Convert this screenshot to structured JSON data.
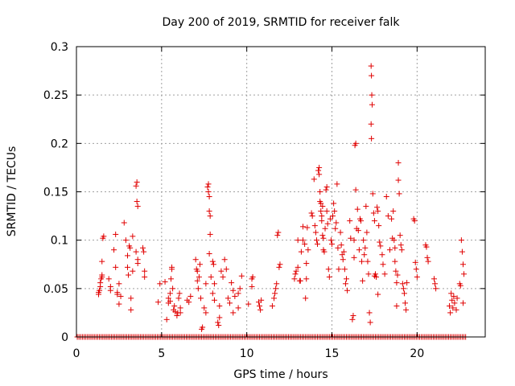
{
  "chart_data": {
    "type": "scatter",
    "title": "Day 200 of 2019, SRMTID for receiver falk",
    "xlabel": "GPS time / hours",
    "ylabel": "SRMTID / TECUs",
    "xlim": [
      0,
      24
    ],
    "ylim": [
      0,
      0.3
    ],
    "xticks": [
      0,
      5,
      10,
      15,
      20
    ],
    "xtick_labels": [
      "0",
      "5",
      "10",
      "15",
      "20"
    ],
    "yticks": [
      0,
      0.05,
      0.1,
      0.15,
      0.2,
      0.25,
      0.3
    ],
    "ytick_labels": [
      "0",
      "0.05",
      "0.1",
      "0.15",
      "0.2",
      "0.25",
      "0.3"
    ],
    "grid": true,
    "marker": "+",
    "color": "#e00000",
    "zero_band": {
      "x_start": 0.05,
      "x_end": 22.9,
      "step": 0.1,
      "y": 0
    },
    "points": [
      [
        1.3,
        0.044
      ],
      [
        1.3,
        0.046
      ],
      [
        1.35,
        0.048
      ],
      [
        1.4,
        0.052
      ],
      [
        1.4,
        0.056
      ],
      [
        1.45,
        0.06
      ],
      [
        1.5,
        0.062
      ],
      [
        1.5,
        0.064
      ],
      [
        1.5,
        0.078
      ],
      [
        1.55,
        0.102
      ],
      [
        1.6,
        0.104
      ],
      [
        1.9,
        0.06
      ],
      [
        2.0,
        0.052
      ],
      [
        2.0,
        0.048
      ],
      [
        2.2,
        0.09
      ],
      [
        2.3,
        0.106
      ],
      [
        2.3,
        0.072
      ],
      [
        2.4,
        0.044
      ],
      [
        2.4,
        0.046
      ],
      [
        2.5,
        0.055
      ],
      [
        2.5,
        0.034
      ],
      [
        2.6,
        0.042
      ],
      [
        2.8,
        0.118
      ],
      [
        2.9,
        0.1
      ],
      [
        3.0,
        0.084
      ],
      [
        3.0,
        0.072
      ],
      [
        3.05,
        0.064
      ],
      [
        3.1,
        0.094
      ],
      [
        3.15,
        0.092
      ],
      [
        3.2,
        0.04
      ],
      [
        3.2,
        0.028
      ],
      [
        3.3,
        0.068
      ],
      [
        3.3,
        0.104
      ],
      [
        3.5,
        0.156
      ],
      [
        3.55,
        0.16
      ],
      [
        3.55,
        0.14
      ],
      [
        3.6,
        0.135
      ],
      [
        3.5,
        0.088
      ],
      [
        3.6,
        0.076
      ],
      [
        3.6,
        0.08
      ],
      [
        3.9,
        0.092
      ],
      [
        3.95,
        0.088
      ],
      [
        4.0,
        0.068
      ],
      [
        4.0,
        0.062
      ],
      [
        4.8,
        0.036
      ],
      [
        4.9,
        0.055
      ],
      [
        5.2,
        0.057
      ],
      [
        5.3,
        0.018
      ],
      [
        5.4,
        0.04
      ],
      [
        5.4,
        0.035
      ],
      [
        5.5,
        0.037
      ],
      [
        5.5,
        0.045
      ],
      [
        5.55,
        0.06
      ],
      [
        5.6,
        0.07
      ],
      [
        5.6,
        0.072
      ],
      [
        5.65,
        0.05
      ],
      [
        5.7,
        0.028
      ],
      [
        5.75,
        0.032
      ],
      [
        5.8,
        0.026
      ],
      [
        5.9,
        0.022
      ],
      [
        5.95,
        0.025
      ],
      [
        6.0,
        0.04
      ],
      [
        6.05,
        0.045
      ],
      [
        6.1,
        0.03
      ],
      [
        6.1,
        0.025
      ],
      [
        6.5,
        0.038
      ],
      [
        6.6,
        0.036
      ],
      [
        6.7,
        0.042
      ],
      [
        7.0,
        0.08
      ],
      [
        7.05,
        0.07
      ],
      [
        7.1,
        0.068
      ],
      [
        7.1,
        0.058
      ],
      [
        7.15,
        0.05
      ],
      [
        7.2,
        0.062
      ],
      [
        7.25,
        0.075
      ],
      [
        7.3,
        0.04
      ],
      [
        7.35,
        0.008
      ],
      [
        7.4,
        0.01
      ],
      [
        7.5,
        0.03
      ],
      [
        7.6,
        0.025
      ],
      [
        7.6,
        0.055
      ],
      [
        7.7,
        0.155
      ],
      [
        7.75,
        0.158
      ],
      [
        7.75,
        0.15
      ],
      [
        7.8,
        0.145
      ],
      [
        7.8,
        0.13
      ],
      [
        7.85,
        0.125
      ],
      [
        7.85,
        0.106
      ],
      [
        7.8,
        0.086
      ],
      [
        7.9,
        0.062
      ],
      [
        8.0,
        0.078
      ],
      [
        8.0,
        0.045
      ],
      [
        8.05,
        0.075
      ],
      [
        8.1,
        0.038
      ],
      [
        8.1,
        0.055
      ],
      [
        8.3,
        0.015
      ],
      [
        8.35,
        0.012
      ],
      [
        8.4,
        0.02
      ],
      [
        8.4,
        0.032
      ],
      [
        8.5,
        0.068
      ],
      [
        8.6,
        0.062
      ],
      [
        8.7,
        0.08
      ],
      [
        8.8,
        0.07
      ],
      [
        8.9,
        0.04
      ],
      [
        9.0,
        0.035
      ],
      [
        9.1,
        0.056
      ],
      [
        9.2,
        0.048
      ],
      [
        9.2,
        0.025
      ],
      [
        9.3,
        0.042
      ],
      [
        9.5,
        0.03
      ],
      [
        9.5,
        0.045
      ],
      [
        9.6,
        0.05
      ],
      [
        9.7,
        0.063
      ],
      [
        10.1,
        0.034
      ],
      [
        10.3,
        0.06
      ],
      [
        10.35,
        0.062
      ],
      [
        10.3,
        0.052
      ],
      [
        10.7,
        0.036
      ],
      [
        10.75,
        0.032
      ],
      [
        10.8,
        0.028
      ],
      [
        10.85,
        0.038
      ],
      [
        11.5,
        0.032
      ],
      [
        11.6,
        0.04
      ],
      [
        11.65,
        0.045
      ],
      [
        11.7,
        0.05
      ],
      [
        11.75,
        0.055
      ],
      [
        11.8,
        0.105
      ],
      [
        11.85,
        0.108
      ],
      [
        11.9,
        0.072
      ],
      [
        11.95,
        0.075
      ],
      [
        12.8,
        0.06
      ],
      [
        12.85,
        0.065
      ],
      [
        12.9,
        0.068
      ],
      [
        13.0,
        0.072
      ],
      [
        13.0,
        0.1
      ],
      [
        13.1,
        0.058
      ],
      [
        13.15,
        0.058
      ],
      [
        13.2,
        0.088
      ],
      [
        13.3,
        0.1
      ],
      [
        13.3,
        0.114
      ],
      [
        13.4,
        0.096
      ],
      [
        13.45,
        0.04
      ],
      [
        13.5,
        0.076
      ],
      [
        13.5,
        0.06
      ],
      [
        13.55,
        0.113
      ],
      [
        13.6,
        0.09
      ],
      [
        13.8,
        0.128
      ],
      [
        13.85,
        0.125
      ],
      [
        13.95,
        0.163
      ],
      [
        14.0,
        0.115
      ],
      [
        14.05,
        0.108
      ],
      [
        14.1,
        0.1
      ],
      [
        14.15,
        0.096
      ],
      [
        14.2,
        0.172
      ],
      [
        14.25,
        0.175
      ],
      [
        14.25,
        0.168
      ],
      [
        14.3,
        0.15
      ],
      [
        14.3,
        0.14
      ],
      [
        14.35,
        0.138
      ],
      [
        14.35,
        0.13
      ],
      [
        14.4,
        0.125
      ],
      [
        14.4,
        0.12
      ],
      [
        14.45,
        0.135
      ],
      [
        14.45,
        0.105
      ],
      [
        14.5,
        0.102
      ],
      [
        14.5,
        0.09
      ],
      [
        14.55,
        0.088
      ],
      [
        14.6,
        0.112
      ],
      [
        14.65,
        0.152
      ],
      [
        14.7,
        0.155
      ],
      [
        14.7,
        0.13
      ],
      [
        14.75,
        0.117
      ],
      [
        14.8,
        0.07
      ],
      [
        14.85,
        0.062
      ],
      [
        14.9,
        0.122
      ],
      [
        14.95,
        0.1
      ],
      [
        15.0,
        0.096
      ],
      [
        15.05,
        0.125
      ],
      [
        15.1,
        0.138
      ],
      [
        15.15,
        0.13
      ],
      [
        15.2,
        0.112
      ],
      [
        15.25,
        0.118
      ],
      [
        15.3,
        0.158
      ],
      [
        15.35,
        0.092
      ],
      [
        15.4,
        0.07
      ],
      [
        15.5,
        0.108
      ],
      [
        15.55,
        0.095
      ],
      [
        15.6,
        0.085
      ],
      [
        15.65,
        0.08
      ],
      [
        15.7,
        0.088
      ],
      [
        15.75,
        0.07
      ],
      [
        15.8,
        0.055
      ],
      [
        15.85,
        0.06
      ],
      [
        15.9,
        0.048
      ],
      [
        16.05,
        0.12
      ],
      [
        16.1,
        0.102
      ],
      [
        16.2,
        0.018
      ],
      [
        16.25,
        0.022
      ],
      [
        16.3,
        0.1
      ],
      [
        16.3,
        0.082
      ],
      [
        16.35,
        0.198
      ],
      [
        16.4,
        0.2
      ],
      [
        16.4,
        0.152
      ],
      [
        16.45,
        0.112
      ],
      [
        16.5,
        0.132
      ],
      [
        16.55,
        0.11
      ],
      [
        16.6,
        0.09
      ],
      [
        16.65,
        0.122
      ],
      [
        16.7,
        0.12
      ],
      [
        16.75,
        0.078
      ],
      [
        16.8,
        0.058
      ],
      [
        16.85,
        0.1
      ],
      [
        16.9,
        0.085
      ],
      [
        16.95,
        0.092
      ],
      [
        17.0,
        0.135
      ],
      [
        17.05,
        0.108
      ],
      [
        17.1,
        0.078
      ],
      [
        17.15,
        0.065
      ],
      [
        17.2,
        0.025
      ],
      [
        17.25,
        0.015
      ],
      [
        17.3,
        0.28
      ],
      [
        17.32,
        0.27
      ],
      [
        17.34,
        0.25
      ],
      [
        17.36,
        0.24
      ],
      [
        17.3,
        0.22
      ],
      [
        17.32,
        0.205
      ],
      [
        17.4,
        0.148
      ],
      [
        17.45,
        0.128
      ],
      [
        17.5,
        0.12
      ],
      [
        17.5,
        0.063
      ],
      [
        17.55,
        0.065
      ],
      [
        17.6,
        0.062
      ],
      [
        17.65,
        0.134
      ],
      [
        17.7,
        0.13
      ],
      [
        17.7,
        0.044
      ],
      [
        17.75,
        0.115
      ],
      [
        17.8,
        0.098
      ],
      [
        17.85,
        0.094
      ],
      [
        17.95,
        0.085
      ],
      [
        18.0,
        0.075
      ],
      [
        18.1,
        0.065
      ],
      [
        18.2,
        0.145
      ],
      [
        18.3,
        0.125
      ],
      [
        18.4,
        0.09
      ],
      [
        18.5,
        0.122
      ],
      [
        18.55,
        0.102
      ],
      [
        18.6,
        0.13
      ],
      [
        18.65,
        0.1
      ],
      [
        18.7,
        0.092
      ],
      [
        18.7,
        0.078
      ],
      [
        18.75,
        0.068
      ],
      [
        18.8,
        0.056
      ],
      [
        18.8,
        0.032
      ],
      [
        18.85,
        0.064
      ],
      [
        18.9,
        0.18
      ],
      [
        18.9,
        0.162
      ],
      [
        18.95,
        0.148
      ],
      [
        19.0,
        0.105
      ],
      [
        19.05,
        0.095
      ],
      [
        19.1,
        0.09
      ],
      [
        19.15,
        0.055
      ],
      [
        19.2,
        0.05
      ],
      [
        19.25,
        0.045
      ],
      [
        19.3,
        0.035
      ],
      [
        19.35,
        0.028
      ],
      [
        19.4,
        0.056
      ],
      [
        19.8,
        0.122
      ],
      [
        19.85,
        0.12
      ],
      [
        19.9,
        0.077
      ],
      [
        19.95,
        0.07
      ],
      [
        20.0,
        0.062
      ],
      [
        20.5,
        0.095
      ],
      [
        20.55,
        0.093
      ],
      [
        20.6,
        0.082
      ],
      [
        20.65,
        0.078
      ],
      [
        21.0,
        0.06
      ],
      [
        21.05,
        0.055
      ],
      [
        21.1,
        0.05
      ],
      [
        21.9,
        0.032
      ],
      [
        21.95,
        0.025
      ],
      [
        22.0,
        0.045
      ],
      [
        22.05,
        0.038
      ],
      [
        22.1,
        0.03
      ],
      [
        22.15,
        0.042
      ],
      [
        22.2,
        0.035
      ],
      [
        22.3,
        0.028
      ],
      [
        22.35,
        0.04
      ],
      [
        22.5,
        0.055
      ],
      [
        22.55,
        0.053
      ],
      [
        22.6,
        0.1
      ],
      [
        22.65,
        0.088
      ],
      [
        22.7,
        0.075
      ],
      [
        22.75,
        0.065
      ],
      [
        22.7,
        0.035
      ]
    ]
  }
}
